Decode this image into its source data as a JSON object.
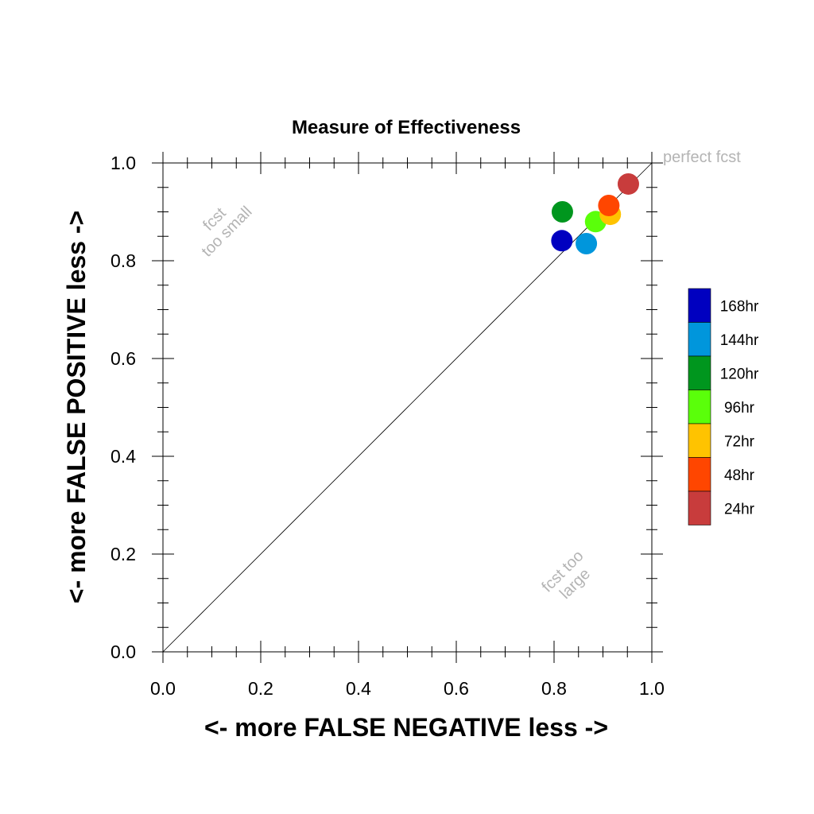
{
  "chart_data": {
    "type": "scatter",
    "title": "Measure of Effectiveness",
    "xlabel": "<- more   FALSE NEGATIVE   less ->",
    "ylabel": "<- more   FALSE POSITIVE   less ->",
    "xlim": [
      0.0,
      1.0
    ],
    "ylim": [
      0.0,
      1.0
    ],
    "x_ticks": [
      "0.0",
      "0.2",
      "0.4",
      "0.6",
      "0.8",
      "1.0"
    ],
    "y_ticks": [
      "0.0",
      "0.2",
      "0.4",
      "0.6",
      "0.8",
      "1.0"
    ],
    "grid": false,
    "reference_line": "diagonal y = x",
    "annotations": {
      "top_right": "perfect fcst",
      "upper_left": [
        "fcst",
        "too small"
      ],
      "lower_right": [
        "fcst too",
        "large"
      ]
    },
    "legend_placement": "right",
    "series": [
      {
        "name": "168hr",
        "color": "#0000c0",
        "x": 0.816,
        "y": 0.841
      },
      {
        "name": "144hr",
        "color": "#0096dc",
        "x": 0.866,
        "y": 0.835
      },
      {
        "name": "120hr",
        "color": "#00961e",
        "x": 0.817,
        "y": 0.9
      },
      {
        "name": "96hr",
        "color": "#5aff0a",
        "x": 0.885,
        "y": 0.88
      },
      {
        "name": "72hr",
        "color": "#ffc300",
        "x": 0.915,
        "y": 0.895
      },
      {
        "name": "48hr",
        "color": "#ff4600",
        "x": 0.912,
        "y": 0.913
      },
      {
        "name": "24hr",
        "color": "#c83c3c",
        "x": 0.952,
        "y": 0.957
      }
    ]
  }
}
